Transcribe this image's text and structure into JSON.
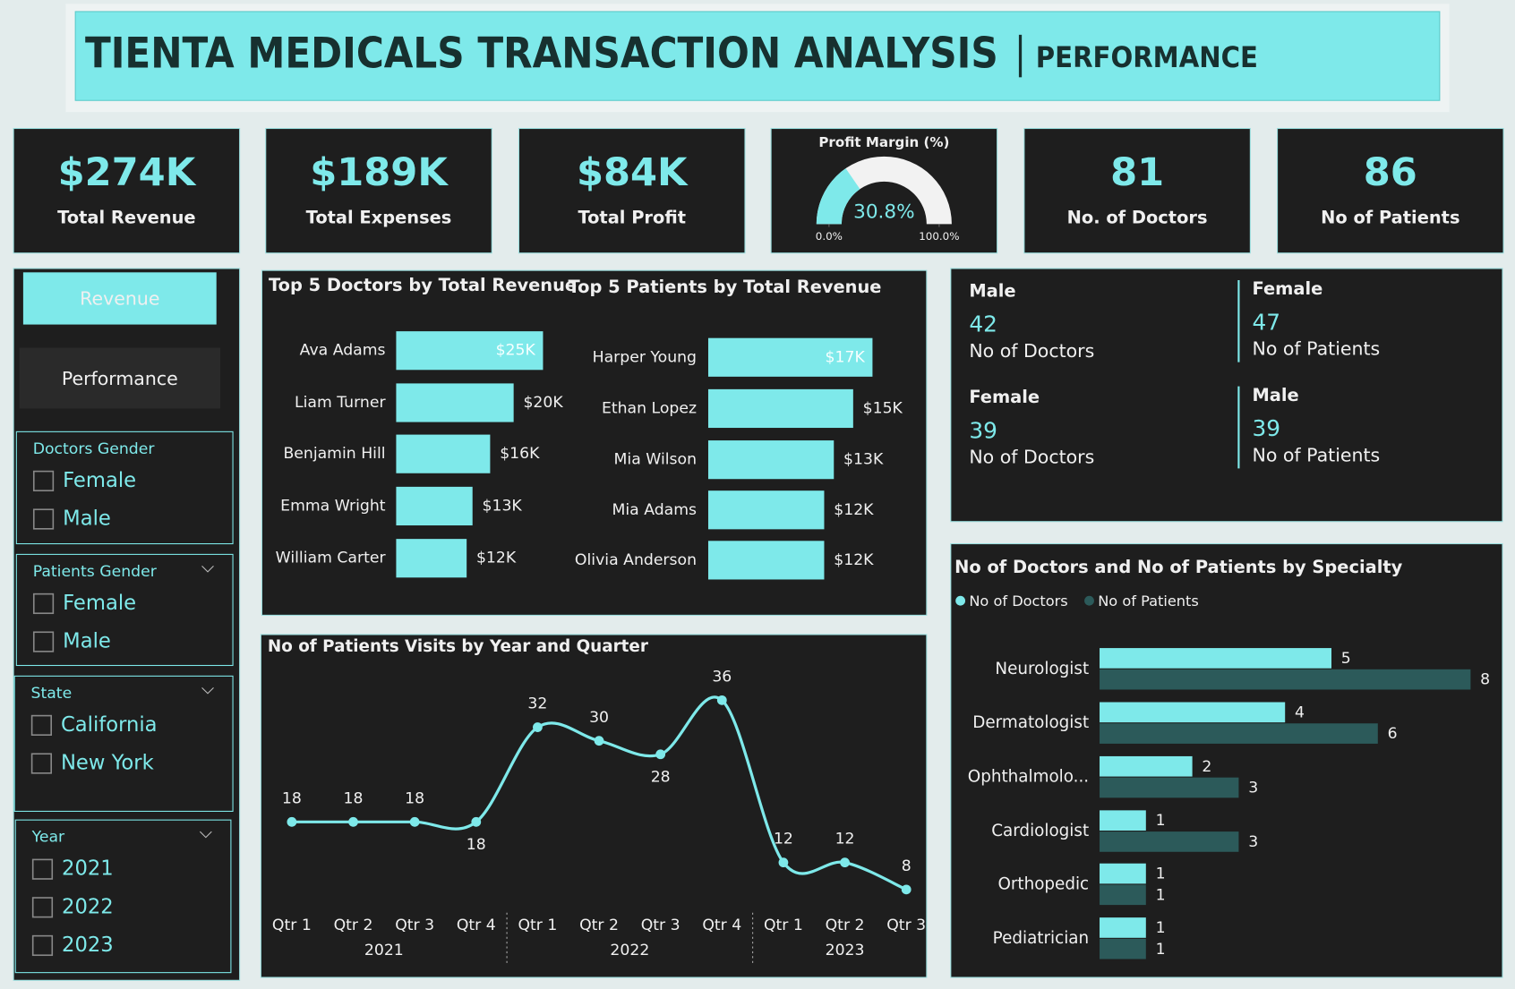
{
  "header": {
    "title": "TIENTA MEDICALS TRANSACTION ANALYSIS",
    "subtitle": "PERFORMANCE"
  },
  "kpis": [
    {
      "value": "$274K",
      "label": "Total Revenue"
    },
    {
      "value": "$189K",
      "label": "Total Expenses"
    },
    {
      "value": "$84K",
      "label": "Total Profit"
    },
    {
      "value": 81,
      "label": "No. of Doctors"
    },
    {
      "value": 86,
      "label": "No of Patients"
    }
  ],
  "nav": [
    "Revenue",
    "Performance"
  ],
  "slicers": [
    {
      "title": "Doctors Gender",
      "options": [
        "Female",
        "Male"
      ]
    },
    {
      "title": "Patients Gender",
      "options": [
        "Female",
        "Male"
      ]
    },
    {
      "title": "State",
      "options": [
        "California",
        "New York"
      ]
    },
    {
      "title": "Year",
      "options": [
        "2021",
        "2022",
        "2023"
      ]
    }
  ],
  "gender_cards": [
    {
      "gender": "Male",
      "value": 42,
      "label": "No of Doctors"
    },
    {
      "gender": "Female",
      "value": 47,
      "label": "No of Patients"
    },
    {
      "gender": "Female",
      "value": 39,
      "label": "No of Doctors"
    },
    {
      "gender": "Male",
      "value": 39,
      "label": "No of Patients"
    }
  ],
  "chart_data": [
    {
      "type": "gauge",
      "title": "Profit Margin (%)",
      "values": [
        30.8
      ],
      "value_labels": [
        "30.8%"
      ],
      "ylim": [
        0,
        100
      ],
      "yticks": [
        {
          "value": 0,
          "label": "0.0%"
        },
        {
          "value": 100,
          "label": "100.0%"
        }
      ],
      "color": "#7ee9ea"
    },
    {
      "type": "hbar",
      "title": "Top 5 Doctors by Total Revenue",
      "categories": [
        "Ava Adams",
        "Liam Turner",
        "Benjamin Hill",
        "Emma Wright",
        "William Carter"
      ],
      "values": [
        25,
        20,
        16,
        13,
        12
      ],
      "value_labels": [
        "$25K",
        "$20K",
        "$16K",
        "$13K",
        "$12K"
      ],
      "color": "#7ee9ea"
    },
    {
      "type": "hbar",
      "title": "Top 5 Patients by Total Revenue",
      "categories": [
        "Harper Young",
        "Ethan Lopez",
        "Mia Wilson",
        "Mia Adams",
        "Olivia Anderson"
      ],
      "values": [
        17,
        15,
        13,
        12,
        12
      ],
      "value_labels": [
        "$17K",
        "$15K",
        "$13K",
        "$12K",
        "$12K"
      ],
      "color": "#7ee9ea"
    },
    {
      "type": "line",
      "title": "No of Patients Visits by Year and Quarter",
      "groups": [
        {
          "name": "2021",
          "categories": [
            "Qtr 1",
            "Qtr 2",
            "Qtr 3",
            "Qtr 4"
          ]
        },
        {
          "name": "2022",
          "categories": [
            "Qtr 1",
            "Qtr 2",
            "Qtr 3",
            "Qtr 4"
          ]
        },
        {
          "name": "2023",
          "categories": [
            "Qtr 1",
            "Qtr 2",
            "Qtr 3"
          ]
        }
      ],
      "values": [
        18,
        18,
        18,
        18,
        32,
        30,
        28,
        36,
        12,
        12,
        8
      ],
      "color": "#7ee9ea"
    },
    {
      "type": "grouped_hbar",
      "title": "No of Doctors and No of Patients by Specialty",
      "categories": [
        "Neurologist",
        "Dermatologist",
        "Ophthalmolo...",
        "Cardiologist",
        "Orthopedic",
        "Pediatrician"
      ],
      "series": [
        {
          "name": "No of Doctors",
          "color": "#7ee9ea",
          "values": [
            5,
            4,
            2,
            1,
            1,
            1
          ]
        },
        {
          "name": "No of Patients",
          "color": "#2c5a5a",
          "values": [
            8,
            6,
            3,
            3,
            1,
            1
          ]
        }
      ],
      "legend": "top-left"
    }
  ]
}
